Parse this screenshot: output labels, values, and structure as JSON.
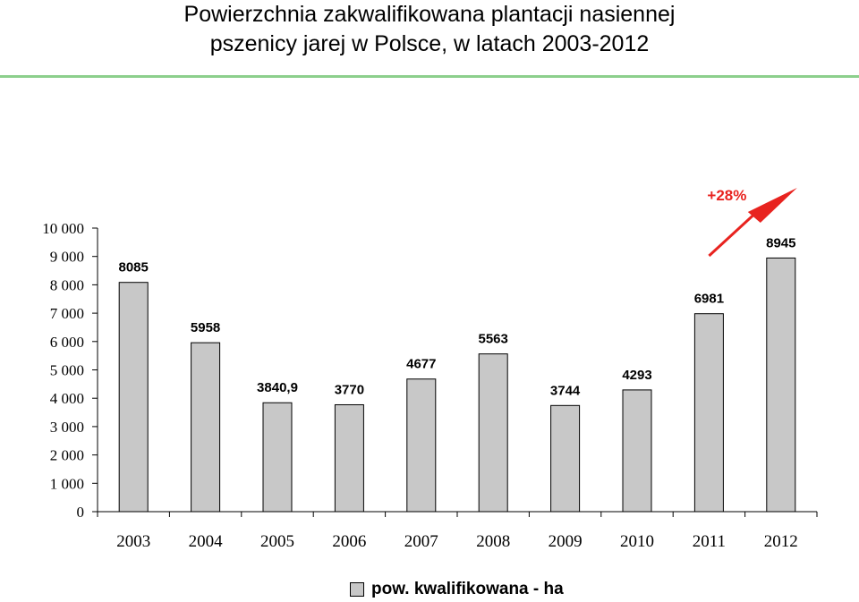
{
  "title": {
    "line1": "Powierzchnia zakwalifikowana plantacji nasiennej",
    "line2": "pszenicy jarej w Polsce, w latach 2003-2012"
  },
  "chart_data": {
    "type": "bar",
    "categories": [
      "2003",
      "2004",
      "2005",
      "2006",
      "2007",
      "2008",
      "2009",
      "2010",
      "2011",
      "2012"
    ],
    "series": [
      {
        "name": "pow. kwalifikowana - ha",
        "values": [
          8085,
          5958,
          3840.9,
          3770,
          4677,
          5563,
          3744,
          4293,
          6981,
          8945
        ],
        "value_labels": [
          "8085",
          "5958",
          "3840,9",
          "3770",
          "4677",
          "5563",
          "3744",
          "4293",
          "6981",
          "8945"
        ],
        "color": "#c8c8c8"
      }
    ],
    "ylim": [
      0,
      10000
    ],
    "yticks": [
      0,
      1000,
      2000,
      3000,
      4000,
      5000,
      6000,
      7000,
      8000,
      9000,
      10000
    ],
    "ytick_labels": [
      "0",
      "1 000",
      "2 000",
      "3 000",
      "4 000",
      "5 000",
      "6 000",
      "7 000",
      "8 000",
      "9 000",
      "10 000"
    ],
    "grid": false,
    "legend_position": "bottom",
    "annotation": {
      "text": "+28%",
      "color": "#e8231f"
    }
  }
}
